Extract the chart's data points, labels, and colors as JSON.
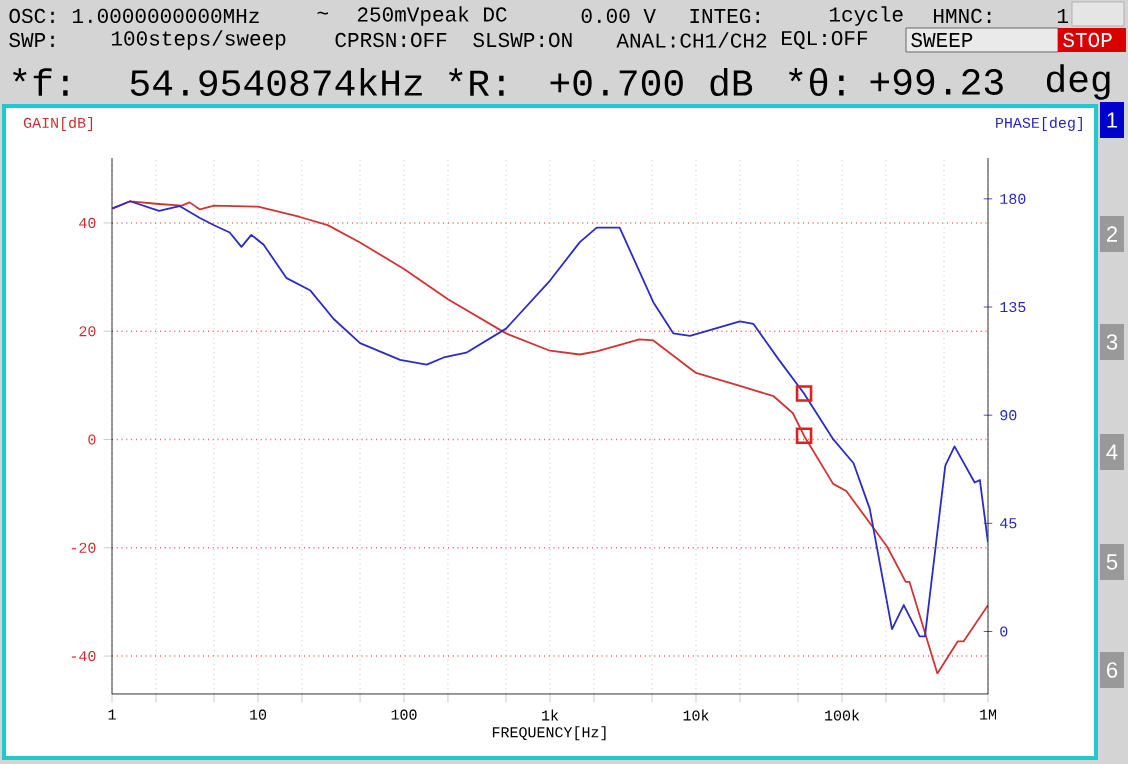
{
  "chart_data": {
    "type": "line",
    "xlabel": "FREQUENCY[Hz]",
    "ylabel": "GAIN[dB]",
    "y2label": "PHASE[deg]",
    "log": "x",
    "grid": true,
    "xlim": [
      1,
      1000000
    ],
    "xticks": [
      {
        "value": 1,
        "label": "1"
      },
      {
        "value": 2,
        "label": null
      },
      {
        "value": 5,
        "label": null
      },
      {
        "value": 10,
        "label": "10"
      },
      {
        "value": 20,
        "label": null
      },
      {
        "value": 50,
        "label": null
      },
      {
        "value": 100,
        "label": "100"
      },
      {
        "value": 200,
        "label": null
      },
      {
        "value": 500,
        "label": null
      },
      {
        "value": 1000,
        "label": "1k"
      },
      {
        "value": 2000,
        "label": null
      },
      {
        "value": 5000,
        "label": null
      },
      {
        "value": 10000,
        "label": "10k"
      },
      {
        "value": 20000,
        "label": null
      },
      {
        "value": 50000,
        "label": null
      },
      {
        "value": 100000,
        "label": "100k"
      },
      {
        "value": 200000,
        "label": null
      },
      {
        "value": 500000,
        "label": null
      },
      {
        "value": 1000000,
        "label": "1M"
      }
    ],
    "ylim": [
      -47,
      52
    ],
    "yticks": [
      -40,
      -20,
      0,
      20,
      40
    ],
    "y2lim": [
      -26,
      197
    ],
    "y2ticks": [
      0,
      45,
      90,
      135,
      180
    ],
    "series": [
      {
        "color": "#d03434",
        "x": [
          1,
          1.33,
          2.1,
          3,
          3.4,
          4,
          5,
          10,
          19.4,
          30,
          50,
          100,
          200,
          500,
          1000,
          1600,
          2090,
          4100,
          5100,
          10000,
          20000,
          34000,
          46000,
          54954,
          87000,
          107000,
          204000,
          273000,
          290000,
          450000,
          620000,
          680000,
          1000000
        ],
        "values": [
          42.6,
          44,
          43.5,
          43.2,
          43.8,
          42.5,
          43.2,
          43,
          41.1,
          39.6,
          36.4,
          31.5,
          25.9,
          19.6,
          16.4,
          15.7,
          16.3,
          18.5,
          18.3,
          12.3,
          9.9,
          8.0,
          4.9,
          0.7,
          -8.2,
          -9.5,
          -19.8,
          -26.3,
          -26.3,
          -43.2,
          -37.3,
          -37.3,
          -30.6
        ]
      },
      {
        "axis": "y2",
        "color": "#2c2cc4",
        "x": [
          1,
          1.33,
          2.1,
          2.9,
          4,
          5,
          6.4,
          7.7,
          9,
          10.9,
          15.7,
          22.7,
          33,
          50,
          94,
          143,
          187,
          267,
          500,
          1000,
          1600,
          2090,
          3000,
          5100,
          7000,
          9100,
          20000,
          24700,
          37000,
          54954,
          87000,
          120000,
          155000,
          220000,
          265000,
          340000,
          370000,
          510000,
          590000,
          810000,
          880000,
          1000000
        ],
        "values": [
          176,
          179,
          175,
          177,
          172,
          169,
          166,
          160,
          165,
          161,
          147,
          142,
          130,
          120,
          113,
          111,
          114,
          116,
          126,
          146,
          162,
          168,
          168,
          137,
          124,
          123,
          129,
          128,
          113,
          99,
          80,
          70,
          51,
          1,
          11,
          -2,
          -2,
          69,
          77,
          62,
          63,
          37
        ]
      },
      {
        "type": "scatter",
        "marker": "square",
        "color": "#e02020",
        "x": [
          54954
        ],
        "values": [
          0.7
        ]
      },
      {
        "type": "scatter",
        "axis": "y2",
        "marker": "square",
        "color": "#e02020",
        "x": [
          54954
        ],
        "values": [
          99
        ]
      }
    ],
    "annotations": [
      "OSC: 1.0000000000MHz",
      "~",
      "250mVpeak DC",
      "0.00 V",
      "INTEG:",
      "1cycle",
      "HMNC:",
      "1",
      "SWP:",
      "100steps/sweep",
      "CPRSN:OFF",
      "SLSWP:ON",
      "ANAL:CH1/CH2",
      "EQL:OFF",
      "SWEEP",
      "STOP",
      "*f:",
      "54.9540874kHz",
      "*R:",
      "+0.700 dB",
      "*θ:",
      "+99.23",
      "deg",
      "1",
      "2",
      "3",
      "4",
      "5",
      "6"
    ]
  }
}
